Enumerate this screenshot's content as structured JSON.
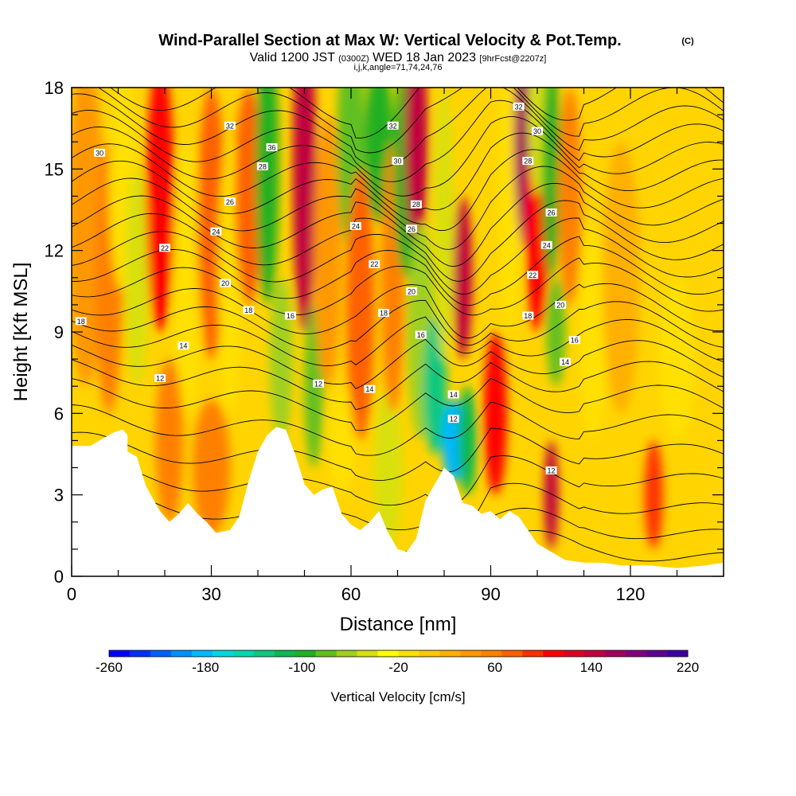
{
  "chart_data": {
    "type": "heatmap",
    "title": "Wind-Parallel Section at Max W: Vertical Velocity & Pot.Temp.",
    "title_mark": "(C)",
    "subtitle_main": "Valid 1200 JST",
    "subtitle_zulu": "(0300Z)",
    "subtitle_date": "WED 18 Jan 2023",
    "subtitle_fcst": "[9hrFcst@2207z]",
    "subtitle_params": "i,j,k,angle=71,74,24,76",
    "xlabel": "Distance [nm]",
    "ylabel": "Height [Kft MSL]",
    "xlim": [
      0,
      140
    ],
    "ylim": [
      0,
      18
    ],
    "x_ticks": [
      "0",
      "30",
      "60",
      "90",
      "120"
    ],
    "y_ticks": [
      "0",
      "3",
      "6",
      "9",
      "12",
      "15",
      "18"
    ],
    "colorbar_label": "Vertical Velocity [cm/s]",
    "colorbar_ticks": [
      "-260",
      "-180",
      "-100",
      "-20",
      "60",
      "140",
      "220"
    ],
    "colorbar_colors": [
      "#0000ff",
      "#0030ff",
      "#0060ff",
      "#0090ff",
      "#00b8ff",
      "#00d8e0",
      "#00d8b0",
      "#10c880",
      "#10b850",
      "#20b020",
      "#60c020",
      "#a0d020",
      "#d8e010",
      "#ffff00",
      "#ffe000",
      "#ffc800",
      "#ffb000",
      "#ff9800",
      "#ff8000",
      "#ff6000",
      "#ff3000",
      "#ff0000",
      "#e00020",
      "#c00040",
      "#a00060",
      "#800080",
      "#600090",
      "#4000a0"
    ],
    "terrain": [
      [
        0,
        4.8
      ],
      [
        4,
        4.8
      ],
      [
        6,
        5.0
      ],
      [
        9,
        5.3
      ],
      [
        11,
        5.4
      ],
      [
        12,
        5.2
      ],
      [
        12,
        4.6
      ],
      [
        14,
        4.4
      ],
      [
        16,
        3.3
      ],
      [
        19,
        2.4
      ],
      [
        21,
        2.0
      ],
      [
        23,
        2.3
      ],
      [
        25,
        2.7
      ],
      [
        27,
        2.3
      ],
      [
        29,
        2.0
      ],
      [
        31,
        1.6
      ],
      [
        34,
        1.7
      ],
      [
        36,
        2.2
      ],
      [
        38,
        3.5
      ],
      [
        40,
        4.6
      ],
      [
        42,
        5.2
      ],
      [
        44,
        5.5
      ],
      [
        46,
        5.4
      ],
      [
        48,
        4.5
      ],
      [
        50,
        3.4
      ],
      [
        52,
        3.0
      ],
      [
        54,
        3.2
      ],
      [
        56,
        3.3
      ],
      [
        58,
        2.3
      ],
      [
        60,
        1.9
      ],
      [
        62,
        1.7
      ],
      [
        64,
        2.0
      ],
      [
        66,
        2.4
      ],
      [
        68,
        1.6
      ],
      [
        70,
        1.0
      ],
      [
        72,
        0.9
      ],
      [
        74,
        1.4
      ],
      [
        76,
        2.8
      ],
      [
        78,
        3.4
      ],
      [
        80,
        4.0
      ],
      [
        82,
        3.7
      ],
      [
        84,
        2.7
      ],
      [
        86,
        2.6
      ],
      [
        88,
        2.3
      ],
      [
        90,
        2.4
      ],
      [
        92,
        2.1
      ],
      [
        94,
        2.4
      ],
      [
        96,
        2.2
      ],
      [
        98,
        1.7
      ],
      [
        100,
        1.2
      ],
      [
        102,
        1.0
      ],
      [
        104,
        0.8
      ],
      [
        106,
        0.6
      ],
      [
        110,
        0.5
      ],
      [
        114,
        0.5
      ],
      [
        118,
        0.4
      ],
      [
        124,
        0.4
      ],
      [
        130,
        0.3
      ],
      [
        136,
        0.4
      ],
      [
        140,
        0.5
      ]
    ],
    "w_cells": [
      {
        "x": 3,
        "y": 13,
        "w": 40,
        "rx": 4,
        "ry": 6
      },
      {
        "x": 8,
        "y": 11,
        "w": 60,
        "rx": 3,
        "ry": 5
      },
      {
        "x": 11,
        "y": 14.5,
        "w": -20,
        "rx": 3,
        "ry": 4
      },
      {
        "x": 14,
        "y": 11,
        "w": -50,
        "rx": 2.5,
        "ry": 4
      },
      {
        "x": 19,
        "y": 14,
        "w": 100,
        "rx": 3,
        "ry": 5
      },
      {
        "x": 21,
        "y": 5,
        "w": 60,
        "rx": 3,
        "ry": 3
      },
      {
        "x": 25,
        "y": 11,
        "w": -10,
        "rx": 3,
        "ry": 5
      },
      {
        "x": 30,
        "y": 13,
        "w": 80,
        "rx": 3,
        "ry": 5
      },
      {
        "x": 30,
        "y": 4,
        "w": 60,
        "rx": 4,
        "ry": 2.5
      },
      {
        "x": 34,
        "y": 11,
        "w": -20,
        "rx": 2.5,
        "ry": 5
      },
      {
        "x": 38,
        "y": 14,
        "w": 70,
        "rx": 3,
        "ry": 4
      },
      {
        "x": 42,
        "y": 15,
        "w": -90,
        "rx": 2.5,
        "ry": 5
      },
      {
        "x": 45,
        "y": 8,
        "w": -60,
        "rx": 2.5,
        "ry": 3
      },
      {
        "x": 50,
        "y": 15,
        "w": 150,
        "rx": 2.5,
        "ry": 6
      },
      {
        "x": 52,
        "y": 7,
        "w": -80,
        "rx": 2,
        "ry": 3
      },
      {
        "x": 55,
        "y": 12,
        "w": 40,
        "rx": 3,
        "ry": 5
      },
      {
        "x": 58,
        "y": 5,
        "w": -20,
        "rx": 3,
        "ry": 2
      },
      {
        "x": 60,
        "y": 16,
        "w": -80,
        "rx": 3,
        "ry": 4
      },
      {
        "x": 62,
        "y": 10,
        "w": 70,
        "rx": 3,
        "ry": 5
      },
      {
        "x": 66,
        "y": 16,
        "w": -100,
        "rx": 3,
        "ry": 3
      },
      {
        "x": 68,
        "y": 4,
        "w": -40,
        "rx": 3,
        "ry": 3
      },
      {
        "x": 69,
        "y": 11,
        "w": 60,
        "rx": 2.5,
        "ry": 5
      },
      {
        "x": 72,
        "y": 15,
        "w": -90,
        "rx": 3,
        "ry": 4
      },
      {
        "x": 74,
        "y": 16,
        "w": 150,
        "rx": 2.5,
        "ry": 4
      },
      {
        "x": 75,
        "y": 9,
        "w": -60,
        "rx": 3,
        "ry": 4
      },
      {
        "x": 78,
        "y": 7,
        "w": -140,
        "rx": 2.5,
        "ry": 2.5
      },
      {
        "x": 82,
        "y": 5,
        "w": -180,
        "rx": 2.5,
        "ry": 1.5
      },
      {
        "x": 80,
        "y": 13,
        "w": -50,
        "rx": 2,
        "ry": 5
      },
      {
        "x": 84,
        "y": 11,
        "w": 140,
        "rx": 2,
        "ry": 3
      },
      {
        "x": 85,
        "y": 5,
        "w": -110,
        "rx": 2,
        "ry": 2
      },
      {
        "x": 91,
        "y": 6,
        "w": 110,
        "rx": 2.5,
        "ry": 3
      },
      {
        "x": 94,
        "y": 14,
        "w": -20,
        "rx": 2.5,
        "ry": 5
      },
      {
        "x": 98,
        "y": 16,
        "w": 160,
        "rx": 3,
        "ry": 4
      },
      {
        "x": 100,
        "y": 13,
        "w": 100,
        "rx": 2.5,
        "ry": 4
      },
      {
        "x": 100,
        "y": 17,
        "w": -40,
        "rx": 2,
        "ry": 3
      },
      {
        "x": 103,
        "y": 15,
        "w": -100,
        "rx": 2,
        "ry": 4
      },
      {
        "x": 104,
        "y": 9,
        "w": -80,
        "rx": 2,
        "ry": 2
      },
      {
        "x": 103,
        "y": 3,
        "w": 140,
        "rx": 1.5,
        "ry": 2
      },
      {
        "x": 107,
        "y": 14,
        "w": 50,
        "rx": 2.5,
        "ry": 4
      },
      {
        "x": 112,
        "y": 9,
        "w": -20,
        "rx": 3,
        "ry": 4
      },
      {
        "x": 118,
        "y": 11,
        "w": 30,
        "rx": 4,
        "ry": 5
      },
      {
        "x": 125,
        "y": 3,
        "w": 90,
        "rx": 2,
        "ry": 2
      },
      {
        "x": 130,
        "y": 8,
        "w": -10,
        "rx": 4,
        "ry": 3
      }
    ],
    "theta_levels_kft": [
      [
        0.8,
        10
      ],
      [
        1.6,
        10.5
      ],
      [
        2.5,
        11
      ],
      [
        3.5,
        11.5
      ],
      [
        4.5,
        12
      ],
      [
        5.5,
        12.5
      ],
      [
        6.5,
        13
      ],
      [
        7.3,
        13.5
      ],
      [
        8.0,
        14
      ],
      [
        8.7,
        14.5
      ],
      [
        9.3,
        15
      ],
      [
        9.9,
        15.5
      ],
      [
        10.6,
        16
      ],
      [
        11.2,
        16.5
      ],
      [
        11.8,
        17
      ],
      [
        12.4,
        17.5
      ],
      [
        13.0,
        18
      ],
      [
        13.6,
        18.5
      ],
      [
        14.2,
        19
      ],
      [
        14.8,
        19.5
      ],
      [
        15.4,
        20
      ],
      [
        16.0,
        20.5
      ],
      [
        16.6,
        21
      ],
      [
        17.2,
        21.5
      ],
      [
        17.8,
        22
      ]
    ],
    "theta_labels": [
      {
        "text": "30",
        "x": 6,
        "y": 15.6
      },
      {
        "text": "32",
        "x": 34,
        "y": 16.6
      },
      {
        "text": "36",
        "x": 43,
        "y": 15.8
      },
      {
        "text": "28",
        "x": 41,
        "y": 15.1
      },
      {
        "text": "26",
        "x": 34,
        "y": 13.8
      },
      {
        "text": "24",
        "x": 31,
        "y": 12.7
      },
      {
        "text": "22",
        "x": 20,
        "y": 12.1
      },
      {
        "text": "20",
        "x": 33,
        "y": 10.8
      },
      {
        "text": "18",
        "x": 2,
        "y": 9.4
      },
      {
        "text": "18",
        "x": 38,
        "y": 9.8
      },
      {
        "text": "16",
        "x": 47,
        "y": 9.6
      },
      {
        "text": "14",
        "x": 24,
        "y": 8.5
      },
      {
        "text": "12",
        "x": 19,
        "y": 7.3
      },
      {
        "text": "12",
        "x": 53,
        "y": 7.1
      },
      {
        "text": "14",
        "x": 64,
        "y": 6.9
      },
      {
        "text": "16",
        "x": 75,
        "y": 8.9
      },
      {
        "text": "18",
        "x": 67,
        "y": 9.7
      },
      {
        "text": "20",
        "x": 73,
        "y": 10.5
      },
      {
        "text": "22",
        "x": 65,
        "y": 11.5
      },
      {
        "text": "24",
        "x": 61,
        "y": 12.9
      },
      {
        "text": "26",
        "x": 73,
        "y": 12.8
      },
      {
        "text": "28",
        "x": 74,
        "y": 13.7
      },
      {
        "text": "30",
        "x": 70,
        "y": 15.3
      },
      {
        "text": "32",
        "x": 69,
        "y": 16.6
      },
      {
        "text": "14",
        "x": 82,
        "y": 6.7
      },
      {
        "text": "12",
        "x": 82,
        "y": 5.8
      },
      {
        "text": "12",
        "x": 103,
        "y": 3.9
      },
      {
        "text": "32",
        "x": 96,
        "y": 17.3
      },
      {
        "text": "30",
        "x": 100,
        "y": 16.4
      },
      {
        "text": "28",
        "x": 98,
        "y": 15.3
      },
      {
        "text": "26",
        "x": 103,
        "y": 13.4
      },
      {
        "text": "24",
        "x": 102,
        "y": 12.2
      },
      {
        "text": "22",
        "x": 99,
        "y": 11.1
      },
      {
        "text": "20",
        "x": 105,
        "y": 10.0
      },
      {
        "text": "18",
        "x": 98,
        "y": 9.6
      },
      {
        "text": "16",
        "x": 108,
        "y": 8.7
      },
      {
        "text": "14",
        "x": 106,
        "y": 7.9
      }
    ]
  }
}
